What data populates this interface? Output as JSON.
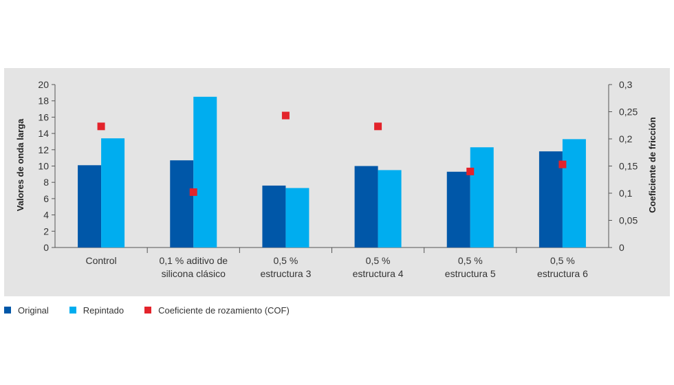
{
  "chart_data": {
    "type": "bar",
    "categories": [
      [
        "Control"
      ],
      [
        "0,1 % aditivo de",
        "silicona clásico"
      ],
      [
        "0,5 %",
        "estructura 3"
      ],
      [
        "0,5 %",
        "estructura 4"
      ],
      [
        "0,5 %",
        "estructura 5"
      ],
      [
        "0,5 %",
        "estructura 6"
      ]
    ],
    "series": [
      {
        "name": "Original",
        "axis": "left",
        "kind": "bar",
        "color": "#0057a8",
        "values": [
          10.1,
          10.7,
          7.6,
          10.0,
          9.3,
          11.8
        ]
      },
      {
        "name": "Repintado",
        "axis": "left",
        "kind": "bar",
        "color": "#00adef",
        "values": [
          13.4,
          18.5,
          7.3,
          9.5,
          12.3,
          13.3
        ]
      },
      {
        "name": "Coeficiente de rozamiento (COF)",
        "axis": "right",
        "kind": "scatter",
        "color": "#e3232b",
        "values": [
          0.223,
          0.102,
          0.243,
          0.223,
          0.14,
          0.153
        ]
      }
    ],
    "ylabel": "Valores de onda larga",
    "y2label": "Coeficiente de fricción",
    "ylim": [
      0,
      20
    ],
    "y2lim": [
      0,
      0.3
    ],
    "yticks": [
      "0",
      "2",
      "4",
      "6",
      "8",
      "10",
      "12",
      "14",
      "16",
      "18",
      "20"
    ],
    "y2ticks": [
      "0",
      "0,05",
      "0,1",
      "0,15",
      "0,2",
      "0,25",
      "0,3"
    ],
    "grid": false,
    "legend_position": "bottom-left"
  }
}
